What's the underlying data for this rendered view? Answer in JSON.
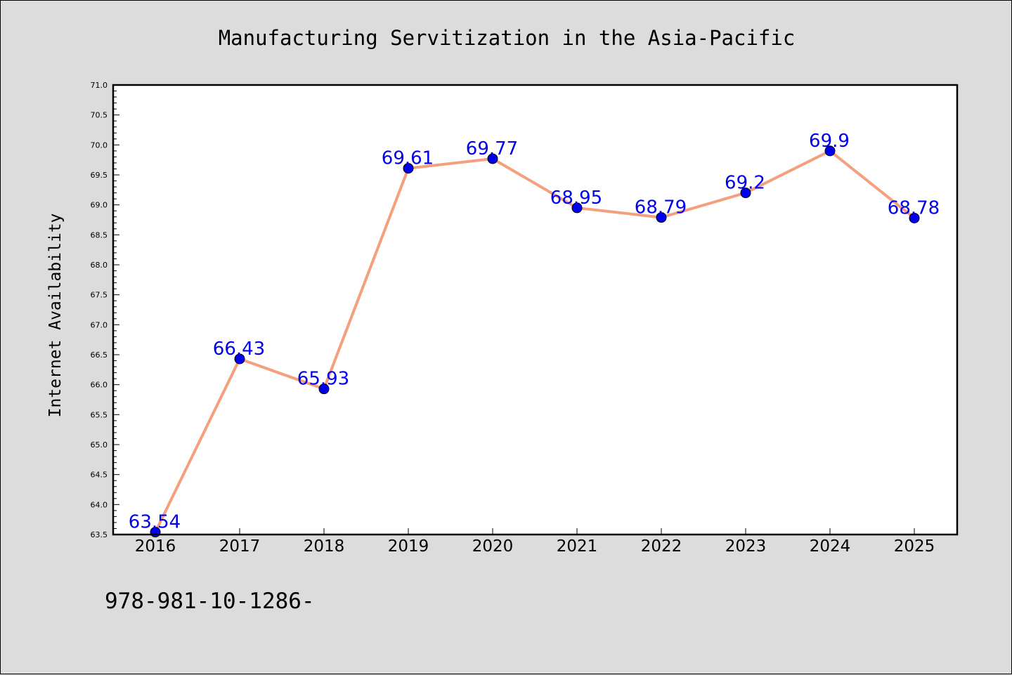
{
  "chart_data": {
    "type": "line",
    "title": "Manufacturing Servitization in the Asia-Pacific",
    "xlabel": "",
    "ylabel": "Internet Availability",
    "x": [
      "2016",
      "2017",
      "2018",
      "2019",
      "2020",
      "2021",
      "2022",
      "2023",
      "2024",
      "2025"
    ],
    "series": [
      {
        "values": [
          63.54,
          66.43,
          65.93,
          69.61,
          69.77,
          68.95,
          68.79,
          69.2,
          69.9,
          68.78
        ],
        "data_labels": [
          "63.54",
          "66.43",
          "65.93",
          "69.61",
          "69.77",
          "68.95",
          "68.79",
          "69.2",
          "69.9",
          "68.78"
        ],
        "line_color": "#f4a07e",
        "marker_color": "#0000ee"
      }
    ],
    "ylim": [
      63.5,
      71.0
    ],
    "yticks": [
      "63.5",
      "64.0",
      "64.5",
      "65.0",
      "65.5",
      "66.0",
      "66.5",
      "67.0",
      "67.5",
      "68.0",
      "68.5",
      "69.0",
      "69.5",
      "70.0",
      "70.5",
      "71.0"
    ],
    "grid": false,
    "label_color": "#0000ee",
    "footnote": "978-981-10-1286-"
  }
}
